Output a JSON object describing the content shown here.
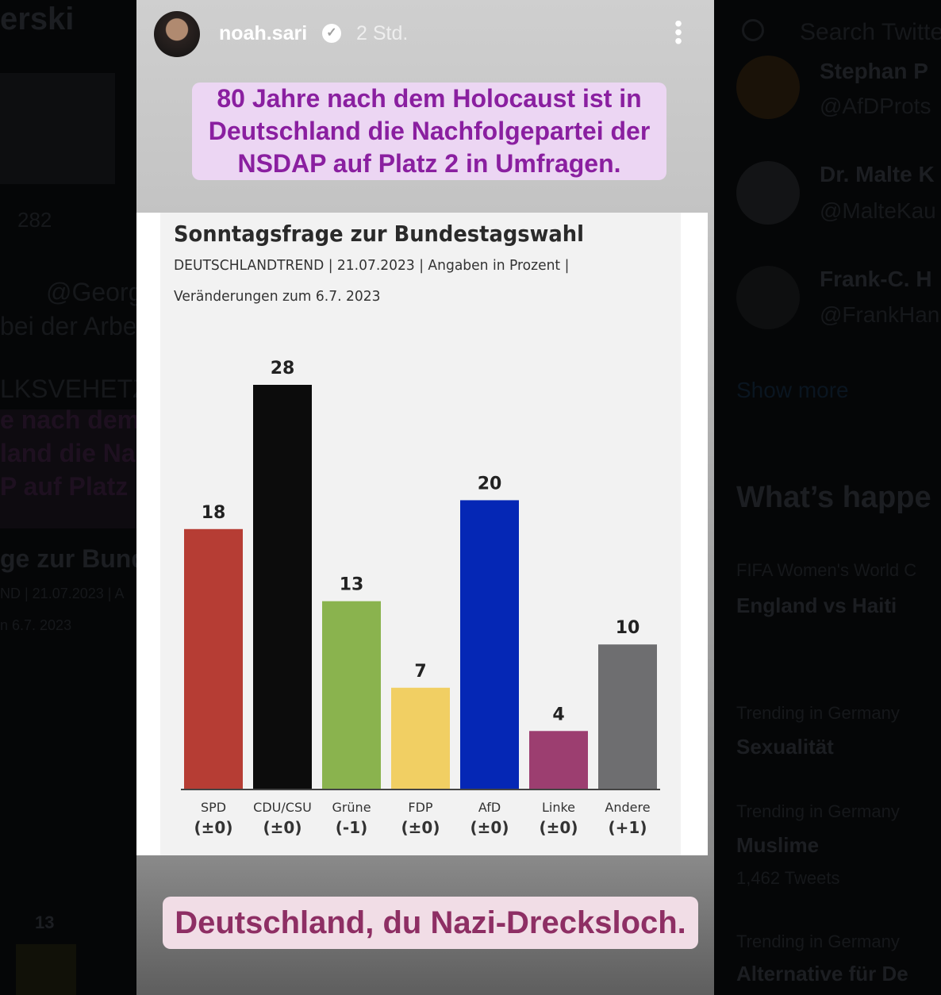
{
  "background_twitter": {
    "left": {
      "name_fragment": "erski",
      "count": "282",
      "handle_fragment": "@Georg",
      "text1": "bei der Arbei",
      "text2": "LKSVEHETZU",
      "quote_lines": [
        "e nach dem",
        "land die Na",
        "P auf Platz"
      ],
      "chart_title": "ge zur Bunde",
      "chart_sub": "ND | 21.07.2023 | A",
      "chart_sub2": "n 6.7. 2023",
      "bar_label": "13"
    },
    "right": {
      "search_placeholder": "Search Twitter",
      "follow": [
        {
          "name": "Stephan P",
          "handle": "@AfDProts"
        },
        {
          "name": "Dr. Malte K",
          "handle": "@MalteKau"
        },
        {
          "name": "Frank-C. H",
          "handle": "@FrankHan"
        }
      ],
      "show_more": "Show more",
      "whats_happening": "What’s happe",
      "trends": [
        {
          "context": "FIFA Women's World C",
          "title": "England vs Haiti",
          "count": ""
        },
        {
          "context": "Trending in Germany",
          "title": "Sexualität",
          "count": ""
        },
        {
          "context": "Trending in Germany",
          "title": "Muslime",
          "count": "1,462 Tweets"
        },
        {
          "context": "Trending in Germany",
          "title": "Alternative für De",
          "count": ""
        }
      ]
    }
  },
  "story": {
    "username": "noah.sari",
    "verified_icon": "verified-badge-icon",
    "time": "2 Std.",
    "caption_top": "80 Jahre nach dem Holocaust ist in Deutschland die Nachfolgepartei der NSDAP auf Platz 2 in Umfragen.",
    "caption_bottom": "Deutschland, du Nazi-Drecksloch."
  },
  "chart_data": {
    "type": "bar",
    "title": "Sonntagsfrage zur Bundestagswahl",
    "subtitle1": "DEUTSCHLANDTREND | 21.07.2023 | Angaben in Prozent |",
    "subtitle2": "Veränderungen zum 6.7. 2023",
    "categories": [
      "SPD",
      "CDU/CSU",
      "Grüne",
      "FDP",
      "AfD",
      "Linke",
      "Andere"
    ],
    "changes": [
      "(±0)",
      "(±0)",
      "(-1)",
      "(±0)",
      "(±0)",
      "(±0)",
      "(+1)"
    ],
    "values": [
      18,
      28,
      13,
      7,
      20,
      4,
      10
    ],
    "colors": [
      "#b63d34",
      "#0c0c0c",
      "#8ab34e",
      "#f1cf63",
      "#0527b5",
      "#9c3e70",
      "#6e6e70"
    ],
    "ylim": [
      0,
      28
    ],
    "ylabel": "",
    "xlabel": ""
  }
}
